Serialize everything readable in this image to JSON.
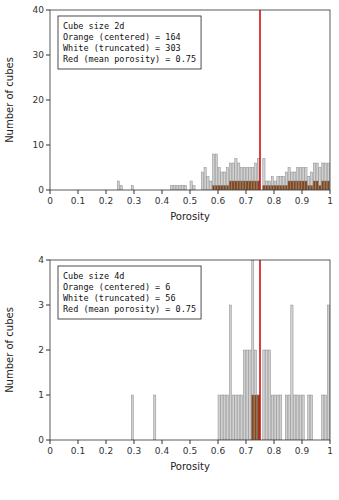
{
  "chart_data": [
    {
      "type": "bar",
      "x_label": "Porosity",
      "y_label": "Number of cubes",
      "annotation": [
        "Cube size 2d",
        "Orange (centered) = 164",
        "White (truncated) = 303",
        "Red (mean porosity) = 0.75"
      ],
      "xlim": [
        0,
        1
      ],
      "xticks": [
        0,
        0.1,
        0.2,
        0.3,
        0.4,
        0.5,
        0.6,
        0.7,
        0.8,
        0.9,
        1
      ],
      "ylim": [
        0,
        40
      ],
      "yticks": [
        0,
        10,
        20,
        30,
        40
      ],
      "grid": false,
      "bin_width": 0.008,
      "series": [
        {
          "type": "bar",
          "color": "#d0d0d0",
          "x": [
            0.24,
            0.25,
            0.29,
            0.43,
            0.44,
            0.45,
            0.46,
            0.47,
            0.48,
            0.5,
            0.51,
            0.54,
            0.55,
            0.56,
            0.57,
            0.58,
            0.59,
            0.6,
            0.61,
            0.62,
            0.63,
            0.64,
            0.65,
            0.66,
            0.67,
            0.68,
            0.69,
            0.7,
            0.71,
            0.72,
            0.73,
            0.74,
            0.76,
            0.77,
            0.78,
            0.79,
            0.8,
            0.81,
            0.82,
            0.83,
            0.84,
            0.85,
            0.86,
            0.87,
            0.88,
            0.89,
            0.9,
            0.91,
            0.92,
            0.93,
            0.94,
            0.95,
            0.96,
            0.97,
            0.98,
            0.99
          ],
          "values": [
            2,
            1,
            1,
            1,
            1,
            1,
            1,
            1,
            1,
            2,
            1,
            4,
            5,
            3,
            2,
            8,
            8,
            5,
            4,
            4,
            5,
            6,
            6,
            7,
            6,
            5,
            5,
            5,
            5,
            5,
            6,
            7,
            7,
            2,
            2,
            3,
            2,
            3,
            3,
            3,
            4,
            5,
            4,
            4,
            5,
            5,
            5,
            5,
            3,
            4,
            6,
            6,
            5,
            6,
            6,
            6
          ]
        },
        {
          "type": "bar",
          "color": "#8B4513",
          "x": [
            0.58,
            0.59,
            0.6,
            0.61,
            0.62,
            0.63,
            0.64,
            0.65,
            0.66,
            0.67,
            0.68,
            0.69,
            0.7,
            0.71,
            0.72,
            0.73,
            0.74,
            0.76,
            0.77,
            0.78,
            0.79,
            0.8,
            0.81,
            0.82,
            0.83,
            0.84,
            0.85,
            0.86,
            0.87,
            0.88,
            0.89,
            0.9,
            0.91,
            0.92,
            0.93,
            0.94,
            0.95,
            0.96,
            0.97,
            0.98,
            0.99
          ],
          "values": [
            1,
            1,
            1,
            1,
            1,
            1,
            2,
            2,
            2,
            2,
            2,
            2,
            2,
            2,
            2,
            2,
            2,
            1,
            1,
            1,
            1,
            1,
            1,
            1,
            1,
            1,
            2,
            2,
            2,
            2,
            2,
            2,
            2,
            1,
            1,
            2,
            2,
            1,
            2,
            2,
            2
          ]
        },
        {
          "type": "vline",
          "color": "#cc0000",
          "x": [
            0.75
          ]
        }
      ]
    },
    {
      "type": "bar",
      "x_label": "Porosity",
      "y_label": "Number of cubes",
      "annotation": [
        "Cube size 4d",
        "Orange (centered) = 6",
        "White (truncated) = 56",
        "Red (mean porosity) = 0.75"
      ],
      "xlim": [
        0,
        1
      ],
      "xticks": [
        0,
        0.1,
        0.2,
        0.3,
        0.4,
        0.5,
        0.6,
        0.7,
        0.8,
        0.9,
        1
      ],
      "ylim": [
        0,
        4
      ],
      "yticks": [
        0,
        1,
        2,
        3,
        4
      ],
      "grid": false,
      "bin_width": 0.008,
      "series": [
        {
          "type": "bar",
          "color": "#d0d0d0",
          "x": [
            0.29,
            0.37,
            0.6,
            0.61,
            0.62,
            0.63,
            0.64,
            0.65,
            0.66,
            0.67,
            0.68,
            0.69,
            0.7,
            0.71,
            0.72,
            0.73,
            0.74,
            0.76,
            0.77,
            0.78,
            0.79,
            0.8,
            0.81,
            0.82,
            0.84,
            0.85,
            0.86,
            0.87,
            0.88,
            0.89,
            0.9,
            0.92,
            0.93,
            0.97,
            0.98,
            0.99
          ],
          "values": [
            1,
            1,
            1,
            1,
            1,
            1,
            3,
            1,
            1,
            1,
            1,
            2,
            2,
            2,
            4,
            2,
            1,
            2,
            2,
            2,
            1,
            1,
            1,
            1,
            1,
            1,
            3,
            1,
            1,
            1,
            1,
            1,
            1,
            1,
            1,
            3
          ]
        },
        {
          "type": "bar",
          "color": "#8B4513",
          "x": [
            0.72,
            0.73,
            0.74
          ],
          "values": [
            1,
            1,
            1
          ]
        },
        {
          "type": "vline",
          "color": "#cc0000",
          "x": [
            0.75
          ]
        }
      ]
    }
  ]
}
